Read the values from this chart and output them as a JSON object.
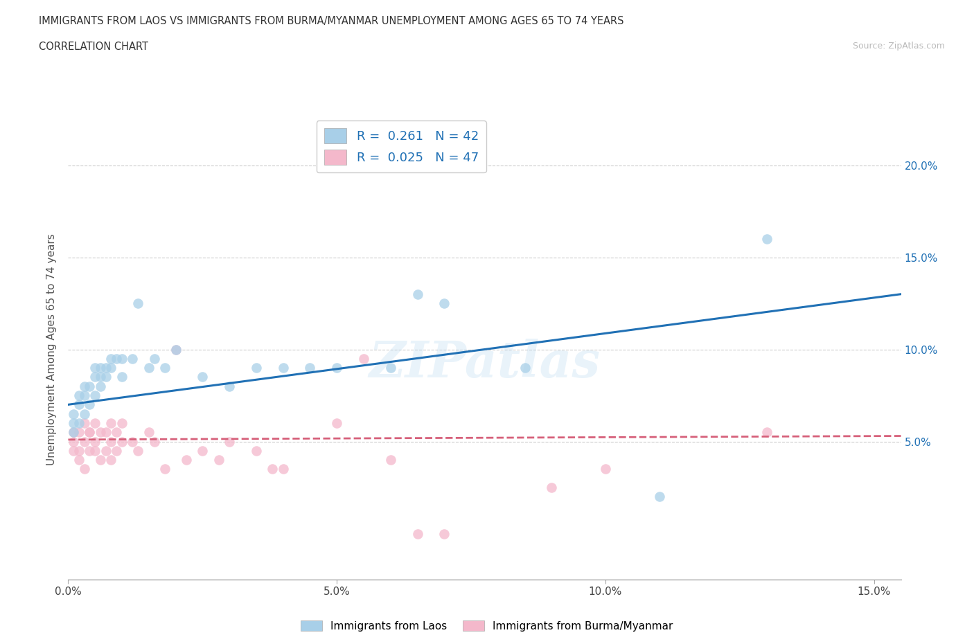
{
  "title_line1": "IMMIGRANTS FROM LAOS VS IMMIGRANTS FROM BURMA/MYANMAR UNEMPLOYMENT AMONG AGES 65 TO 74 YEARS",
  "title_line2": "CORRELATION CHART",
  "source": "Source: ZipAtlas.com",
  "ylabel": "Unemployment Among Ages 65 to 74 years",
  "xlim": [
    0.0,
    0.155
  ],
  "ylim": [
    -0.025,
    0.225
  ],
  "xticks": [
    0.0,
    0.05,
    0.1,
    0.15
  ],
  "xtick_labels": [
    "0.0%",
    "5.0%",
    "10.0%",
    "15.0%"
  ],
  "ytick_labels": [
    "5.0%",
    "10.0%",
    "15.0%",
    "20.0%"
  ],
  "ytick_values": [
    0.05,
    0.1,
    0.15,
    0.2
  ],
  "color_laos": "#a8cfe8",
  "color_burma": "#f4b8cb",
  "line_color_laos": "#2171b5",
  "line_color_burma": "#d6607a",
  "R_laos": 0.261,
  "N_laos": 42,
  "R_burma": 0.025,
  "N_burma": 47,
  "background_color": "#ffffff",
  "grid_color": "#cccccc",
  "legend_label_laos": "Immigrants from Laos",
  "legend_label_burma": "Immigrants from Burma/Myanmar",
  "laos_x": [
    0.001,
    0.001,
    0.001,
    0.002,
    0.002,
    0.002,
    0.003,
    0.003,
    0.003,
    0.004,
    0.004,
    0.005,
    0.005,
    0.005,
    0.006,
    0.006,
    0.006,
    0.007,
    0.007,
    0.008,
    0.008,
    0.009,
    0.01,
    0.01,
    0.012,
    0.013,
    0.015,
    0.016,
    0.018,
    0.02,
    0.025,
    0.03,
    0.035,
    0.04,
    0.045,
    0.05,
    0.06,
    0.065,
    0.07,
    0.085,
    0.11,
    0.13
  ],
  "laos_y": [
    0.055,
    0.06,
    0.065,
    0.06,
    0.07,
    0.075,
    0.065,
    0.075,
    0.08,
    0.07,
    0.08,
    0.075,
    0.085,
    0.09,
    0.08,
    0.085,
    0.09,
    0.085,
    0.09,
    0.09,
    0.095,
    0.095,
    0.085,
    0.095,
    0.095,
    0.125,
    0.09,
    0.095,
    0.09,
    0.1,
    0.085,
    0.08,
    0.09,
    0.09,
    0.09,
    0.09,
    0.09,
    0.13,
    0.125,
    0.09,
    0.02,
    0.16
  ],
  "burma_x": [
    0.001,
    0.001,
    0.001,
    0.002,
    0.002,
    0.002,
    0.003,
    0.003,
    0.003,
    0.004,
    0.004,
    0.004,
    0.005,
    0.005,
    0.005,
    0.006,
    0.006,
    0.007,
    0.007,
    0.008,
    0.008,
    0.008,
    0.009,
    0.009,
    0.01,
    0.01,
    0.012,
    0.013,
    0.015,
    0.016,
    0.018,
    0.02,
    0.022,
    0.025,
    0.028,
    0.03,
    0.035,
    0.038,
    0.04,
    0.05,
    0.055,
    0.06,
    0.065,
    0.07,
    0.09,
    0.1,
    0.13
  ],
  "burma_y": [
    0.055,
    0.045,
    0.05,
    0.045,
    0.055,
    0.04,
    0.05,
    0.06,
    0.035,
    0.055,
    0.045,
    0.055,
    0.05,
    0.06,
    0.045,
    0.055,
    0.04,
    0.055,
    0.045,
    0.05,
    0.04,
    0.06,
    0.055,
    0.045,
    0.06,
    0.05,
    0.05,
    0.045,
    0.055,
    0.05,
    0.035,
    0.1,
    0.04,
    0.045,
    0.04,
    0.05,
    0.045,
    0.035,
    0.035,
    0.06,
    0.095,
    0.04,
    0.0,
    0.0,
    0.025,
    0.035,
    0.055
  ],
  "laos_line_x0": 0.0,
  "laos_line_y0": 0.07,
  "laos_line_x1": 0.155,
  "laos_line_y1": 0.13,
  "burma_line_x0": 0.0,
  "burma_line_y0": 0.051,
  "burma_line_x1": 0.155,
  "burma_line_y1": 0.053
}
